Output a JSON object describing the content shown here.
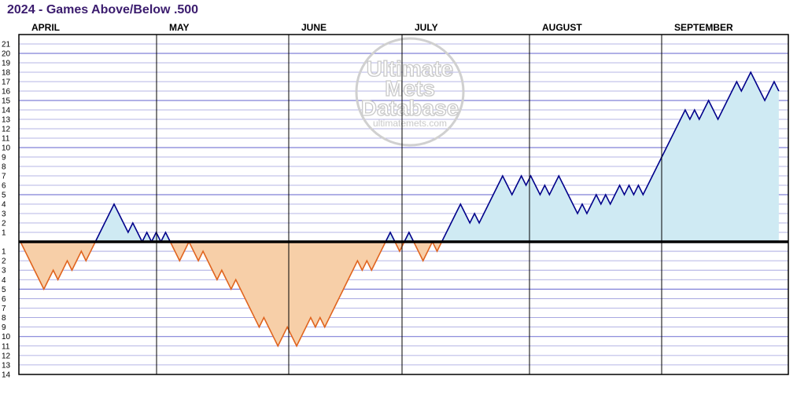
{
  "chart_data": {
    "type": "area",
    "title": "2024 - Games Above/Below .500",
    "months": [
      "APRIL",
      "MAY",
      "JUNE",
      "JULY",
      "AUGUST",
      "SEPTEMBER"
    ],
    "y_above_ticks": [
      21,
      20,
      19,
      18,
      17,
      16,
      15,
      14,
      13,
      12,
      11,
      10,
      9,
      8,
      7,
      6,
      5,
      4,
      3,
      2,
      1
    ],
    "y_below_ticks": [
      1,
      2,
      3,
      4,
      5,
      6,
      7,
      8,
      9,
      10,
      11,
      12,
      13,
      14
    ],
    "ylim": [
      -14,
      21
    ],
    "grid": true,
    "values": [
      0,
      -1,
      -2,
      -3,
      -4,
      -5,
      -4,
      -3,
      -4,
      -3,
      -2,
      -3,
      -2,
      -1,
      -2,
      -1,
      0,
      1,
      2,
      3,
      4,
      3,
      2,
      1,
      2,
      1,
      0,
      1,
      0,
      1,
      0,
      1,
      0,
      -1,
      -2,
      -1,
      0,
      -1,
      -2,
      -1,
      -2,
      -3,
      -4,
      -3,
      -4,
      -5,
      -4,
      -5,
      -6,
      -7,
      -8,
      -9,
      -8,
      -9,
      -10,
      -11,
      -10,
      -9,
      -10,
      -11,
      -10,
      -9,
      -8,
      -9,
      -8,
      -9,
      -8,
      -7,
      -6,
      -5,
      -4,
      -3,
      -2,
      -3,
      -2,
      -3,
      -2,
      -1,
      0,
      1,
      0,
      -1,
      0,
      1,
      0,
      -1,
      -2,
      -1,
      0,
      -1,
      0,
      1,
      2,
      3,
      4,
      3,
      2,
      3,
      2,
      3,
      4,
      5,
      6,
      7,
      6,
      5,
      6,
      7,
      6,
      7,
      6,
      5,
      6,
      5,
      6,
      7,
      6,
      5,
      4,
      3,
      4,
      3,
      4,
      5,
      4,
      5,
      4,
      5,
      6,
      5,
      6,
      5,
      6,
      5,
      6,
      7,
      8,
      9,
      10,
      11,
      12,
      13,
      14,
      13,
      14,
      13,
      14,
      15,
      14,
      13,
      14,
      15,
      16,
      17,
      16,
      17,
      18,
      17,
      16,
      15,
      16,
      17,
      16
    ],
    "colors": {
      "above_fill": "#cfeaf3",
      "above_line": "#00008b",
      "below_fill": "#f7cfa8",
      "below_line": "#e0641e",
      "grid": "#9c9cdc",
      "title": "#3b1c6e"
    }
  },
  "watermark": {
    "line1": "Ultimate",
    "line2": "Mets",
    "line3": "Database",
    "url": "ultimatemets.com"
  }
}
